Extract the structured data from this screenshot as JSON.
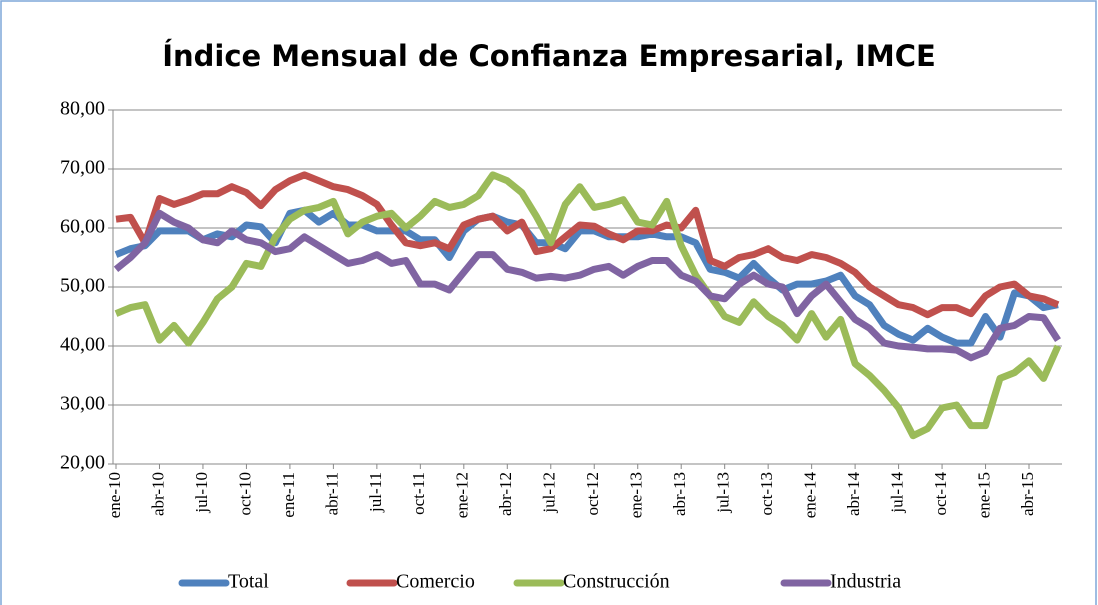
{
  "chart_data": {
    "type": "line",
    "title": "Índice Mensual de Confianza Empresarial, IMCE",
    "categories": [
      "ene-10",
      null,
      null,
      "abr-10",
      null,
      null,
      "jul-10",
      null,
      null,
      "oct-10",
      null,
      null,
      "ene-11",
      null,
      null,
      "abr-11",
      null,
      null,
      "jul-11",
      null,
      null,
      "oct-11",
      null,
      null,
      "ene-12",
      null,
      null,
      "abr-12",
      null,
      null,
      "jul-12",
      null,
      null,
      "oct-12",
      null,
      null,
      "ene-13",
      null,
      null,
      "abr-13",
      null,
      null,
      "jul-13",
      null,
      null,
      "oct-13",
      null,
      null,
      "ene-14",
      null,
      null,
      "abr-14",
      null,
      null,
      "jul-14",
      null,
      null,
      "oct-14",
      null,
      null,
      "ene-15",
      null,
      null,
      "abr-15",
      null,
      null
    ],
    "series": [
      {
        "name": "Total",
        "color": "#4f81bd",
        "values": [
          55.5,
          56.5,
          57,
          59.5,
          59.5,
          59.5,
          58,
          59,
          58.5,
          60.5,
          60.2,
          57.5,
          62.5,
          63,
          61,
          62.5,
          60.5,
          60.5,
          59.5,
          59.5,
          59.5,
          58,
          58,
          55,
          59.5,
          61.5,
          62,
          61,
          60.5,
          57.5,
          57.5,
          56.5,
          59.5,
          59.5,
          58.5,
          58.5,
          58.5,
          59,
          58.5,
          58.5,
          57.5,
          53,
          52.5,
          51.5,
          54,
          51.5,
          49.5,
          50.5,
          50.5,
          51,
          52,
          48.5,
          47,
          43.5,
          42,
          41,
          43,
          41.5,
          40.5,
          40.5,
          45,
          41.5,
          49,
          48.5,
          46.5,
          47
        ]
      },
      {
        "name": "Comercio",
        "color": "#c0504d",
        "values": [
          61.5,
          61.8,
          57.5,
          65,
          64,
          64.8,
          65.8,
          65.8,
          67,
          66,
          63.8,
          66.5,
          68,
          69,
          68,
          67,
          66.5,
          65.5,
          64,
          60.5,
          57.5,
          57,
          57.5,
          56.5,
          60.5,
          61.5,
          62,
          59.5,
          61,
          56,
          56.5,
          58.5,
          60.5,
          60.3,
          59,
          58,
          59.5,
          59.5,
          60.5,
          60,
          63,
          54.5,
          53.5,
          55,
          55.5,
          56.5,
          55,
          54.5,
          55.5,
          55,
          54,
          52.5,
          50,
          48.5,
          47,
          46.5,
          45.3,
          46.5,
          46.5,
          45.5,
          48.5,
          50,
          50.5,
          48.5,
          48,
          47
        ]
      },
      {
        "name": "Construcción",
        "color": "#9bbb59",
        "values": [
          45.5,
          46.5,
          47,
          41,
          43.5,
          40.5,
          44,
          48,
          50,
          54,
          53.5,
          58.5,
          61.5,
          63,
          63.5,
          64.5,
          59,
          61,
          62,
          62.5,
          60,
          62,
          64.5,
          63.5,
          64,
          65.5,
          69,
          68,
          66,
          62,
          57.5,
          64,
          67,
          63.5,
          64,
          64.8,
          61,
          60.5,
          64.5,
          57,
          52,
          48.5,
          45,
          44,
          47.5,
          45,
          43.5,
          41,
          45.5,
          41.5,
          44.5,
          37,
          35,
          32.5,
          29.5,
          24.8,
          26,
          29.5,
          30,
          26.5,
          26.5,
          34.5,
          35.5,
          37.5,
          34.5,
          40
        ]
      },
      {
        "name": "Industria",
        "color": "#8064a2",
        "values": [
          53,
          55,
          57.5,
          62.5,
          61,
          60,
          58,
          57.5,
          59.5,
          58,
          57.5,
          56,
          56.5,
          58.5,
          57,
          55.5,
          54,
          54.5,
          55.5,
          54,
          54.5,
          50.5,
          50.5,
          49.5,
          52.5,
          55.5,
          55.5,
          53,
          52.5,
          51.5,
          51.8,
          51.5,
          52,
          53,
          53.5,
          52,
          53.5,
          54.5,
          54.5,
          52,
          51,
          48.5,
          48,
          50.5,
          52,
          50.5,
          50,
          45.5,
          48.5,
          50.5,
          47.5,
          44.5,
          43,
          40.5,
          40,
          39.8,
          39.5,
          39.5,
          39.3,
          38,
          39,
          43,
          43.5,
          45,
          44.8,
          41
        ]
      }
    ],
    "ylim": [
      20,
      80
    ],
    "yticks": [
      {
        "value": 20,
        "label": "20,00"
      },
      {
        "value": 30,
        "label": "30,00"
      },
      {
        "value": 40,
        "label": "40,00"
      },
      {
        "value": 50,
        "label": "50,00"
      },
      {
        "value": 60,
        "label": "60,00"
      },
      {
        "value": 70,
        "label": "70,00"
      },
      {
        "value": 80,
        "label": "80,00"
      }
    ],
    "grid": true,
    "legend": "bottom"
  }
}
